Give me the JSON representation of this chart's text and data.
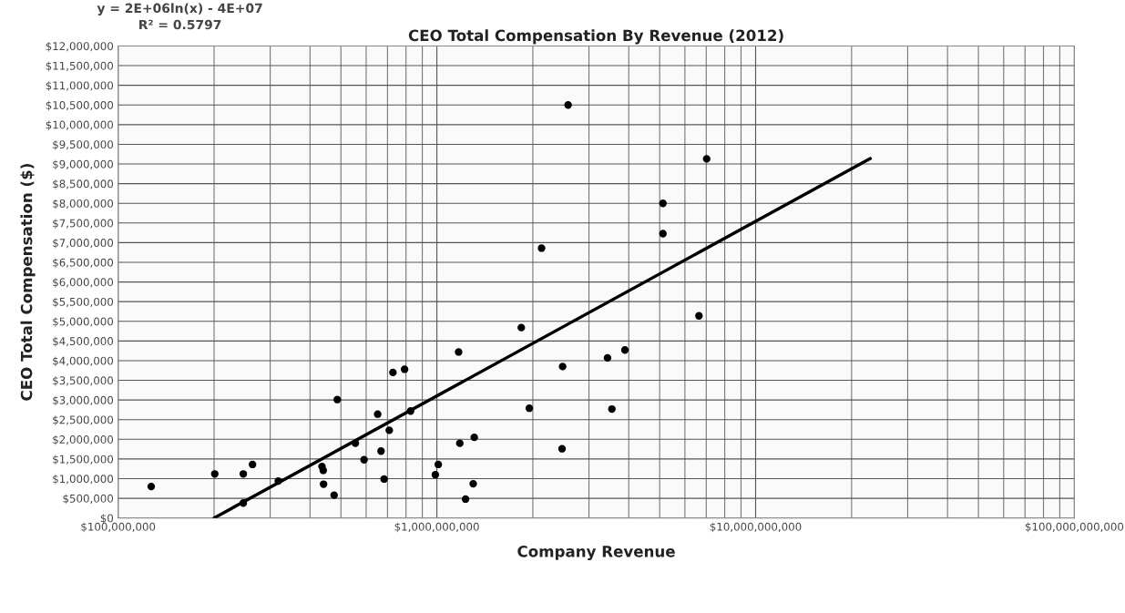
{
  "chart_data": {
    "type": "scatter",
    "title": "CEO Total Compensation By Revenue (2012)",
    "xlabel": "Company Revenue",
    "ylabel": "CEO Total Compensation ($)",
    "annotations": [
      "y = 2E+06ln(x) - 4E+07",
      "R² = 0.5797"
    ],
    "log": "x",
    "grid": true,
    "xlim": [
      100000000,
      100000000000
    ],
    "xticks": [
      {
        "value": 100000000,
        "label": "$100,000,000"
      },
      {
        "value": 1000000000,
        "label": "$1,000,000,000"
      },
      {
        "value": 10000000000,
        "label": "$10,000,000,000"
      },
      {
        "value": 100000000000,
        "label": "$100,000,000,000"
      }
    ],
    "ylim": [
      0,
      12000000
    ],
    "yticks": [
      {
        "value": 0,
        "label": "$0"
      },
      {
        "value": 500000,
        "label": "$500,000"
      },
      {
        "value": 1000000,
        "label": "$1,000,000"
      },
      {
        "value": 1500000,
        "label": "$1,500,000"
      },
      {
        "value": 2000000,
        "label": "$2,000,000"
      },
      {
        "value": 2500000,
        "label": "$2,500,000"
      },
      {
        "value": 3000000,
        "label": "$3,000,000"
      },
      {
        "value": 3500000,
        "label": "$3,500,000"
      },
      {
        "value": 4000000,
        "label": "$4,000,000"
      },
      {
        "value": 4500000,
        "label": "$4,500,000"
      },
      {
        "value": 5000000,
        "label": "$5,000,000"
      },
      {
        "value": 5500000,
        "label": "$5,500,000"
      },
      {
        "value": 6000000,
        "label": "$6,000,000"
      },
      {
        "value": 6500000,
        "label": "$6,500,000"
      },
      {
        "value": 7000000,
        "label": "$7,000,000"
      },
      {
        "value": 7500000,
        "label": "$7,500,000"
      },
      {
        "value": 8000000,
        "label": "$8,000,000"
      },
      {
        "value": 8500000,
        "label": "$8,500,000"
      },
      {
        "value": 9000000,
        "label": "$9,000,000"
      },
      {
        "value": 9500000,
        "label": "$9,500,000"
      },
      {
        "value": 10000000,
        "label": "$10,000,000"
      },
      {
        "value": 10500000,
        "label": "$10,500,000"
      },
      {
        "value": 11000000,
        "label": "$11,000,000"
      },
      {
        "value": 11500000,
        "label": "$11,500,000"
      },
      {
        "value": 12000000,
        "label": "$12,000,000"
      }
    ],
    "series": [
      {
        "marker": "circle",
        "color": "#000000",
        "x": [
          127000000,
          201000000,
          247000000,
          264000000,
          318000000,
          436000000,
          440000000,
          441000000,
          487000000,
          555000000,
          591000000,
          652000000,
          668000000,
          683000000,
          709000000,
          728000000,
          792000000,
          827000000,
          989000000,
          1010000000,
          1170000000,
          1180000000,
          1310000000,
          1300000000,
          247000000,
          476000000,
          1230000000,
          1840000000,
          1950000000,
          2480000000,
          2470000000,
          3430000000,
          3890000000,
          3540000000,
          2130000000,
          2580000000,
          5120000000,
          5120000000,
          6640000000,
          7020000000
        ],
        "values": [
          800000,
          1120000,
          1120000,
          1360000,
          940000,
          1310000,
          1210000,
          860000,
          3010000,
          1900000,
          1480000,
          2640000,
          1700000,
          990000,
          2230000,
          3700000,
          3780000,
          2720000,
          1100000,
          1360000,
          4220000,
          1900000,
          2050000,
          870000,
          380000,
          580000,
          480000,
          4840000,
          2790000,
          3850000,
          1760000,
          4070000,
          4270000,
          2770000,
          6860000,
          10500000,
          8000000,
          7230000,
          5140000,
          9130000
        ]
      },
      {
        "type": "line",
        "color": "#000000",
        "x": [
          200000000,
          22900000000
        ],
        "values": [
          0,
          9140000
        ]
      }
    ]
  }
}
